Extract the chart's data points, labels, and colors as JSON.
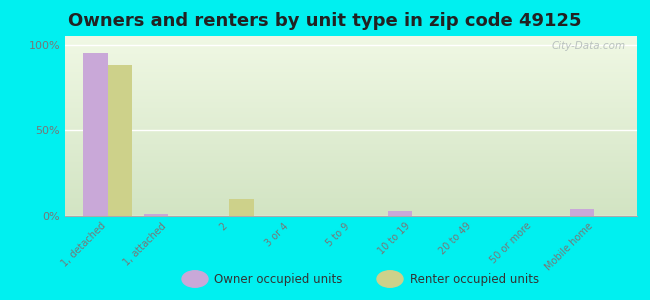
{
  "title": "Owners and renters by unit type in zip code 49125",
  "categories": [
    "1, detached",
    "1, attached",
    "2",
    "3 or 4",
    "5 to 9",
    "10 to 19",
    "20 to 49",
    "50 or more",
    "Mobile home"
  ],
  "owner_values": [
    95,
    1,
    0,
    0,
    0,
    3,
    0,
    0,
    4
  ],
  "renter_values": [
    88,
    0,
    10,
    0,
    0,
    0,
    0,
    0,
    0
  ],
  "owner_color": "#c9a8d8",
  "renter_color": "#cdd18a",
  "background_color": "#00f0f0",
  "plot_bg_top": "#f0f5e0",
  "plot_bg_bottom": "#daecd0",
  "ylabel": "",
  "ylim": [
    0,
    105
  ],
  "yticks": [
    0,
    50,
    100
  ],
  "ytick_labels": [
    "0%",
    "50%",
    "100%"
  ],
  "bar_width": 0.4,
  "legend_owner": "Owner occupied units",
  "legend_renter": "Renter occupied units",
  "watermark": "City-Data.com",
  "title_fontsize": 13,
  "tick_color": "#777777"
}
